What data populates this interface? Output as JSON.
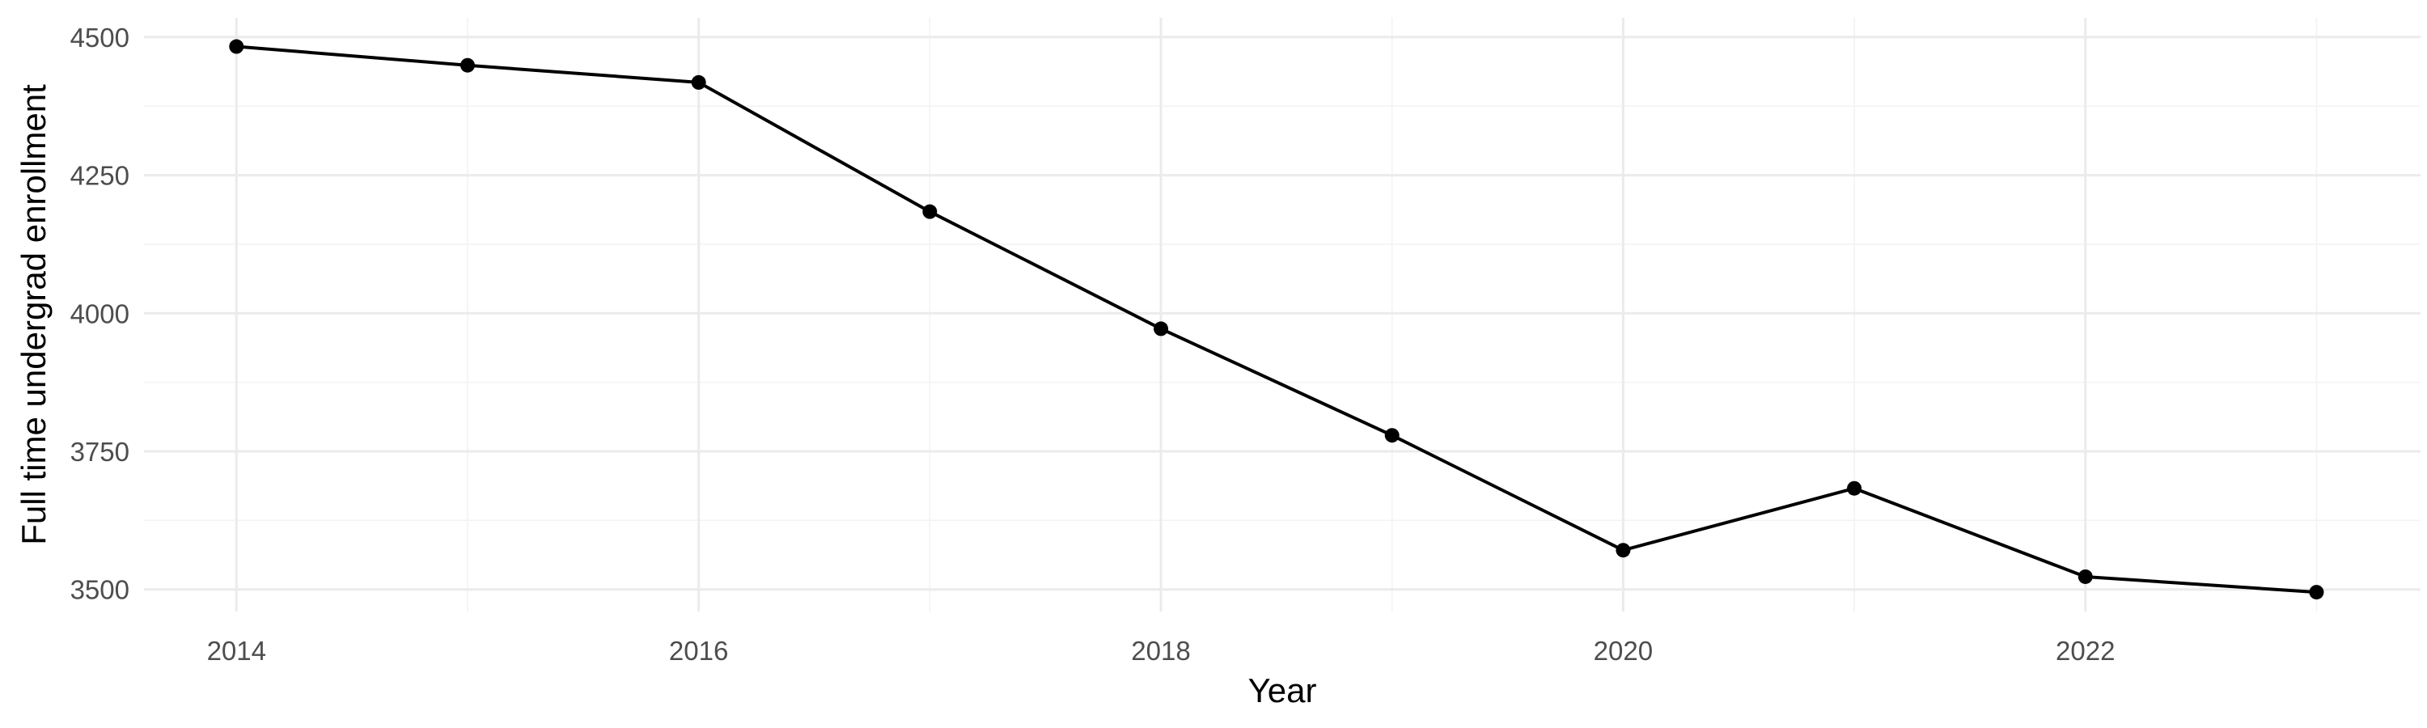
{
  "chart_data": {
    "type": "line",
    "title": "",
    "xlabel": "Year",
    "ylabel": "Full time undergrad enrollment",
    "x": [
      2014,
      2015,
      2016,
      2017,
      2018,
      2019,
      2020,
      2021,
      2022,
      2023
    ],
    "series": [
      {
        "values": [
          4483,
          4449,
          4418,
          4184,
          3972,
          3779,
          3571,
          3683,
          3523,
          3495
        ]
      }
    ],
    "xlim": [
      2013.6,
      2023.45
    ],
    "ylim": [
      3460,
      4535
    ],
    "x_ticks": [
      2014,
      2016,
      2018,
      2020,
      2022
    ],
    "x_tick_labels": [
      "2014",
      "2016",
      "2018",
      "2020",
      "2022"
    ],
    "x_minor_ticks": [
      2015,
      2017,
      2019,
      2021,
      2023
    ],
    "y_ticks": [
      3500,
      3750,
      4000,
      4250,
      4500
    ],
    "y_tick_labels": [
      "3500",
      "3750",
      "4000",
      "4250",
      "4500"
    ],
    "y_minor_ticks": [
      3625,
      3875,
      4125,
      4375
    ],
    "grid": true,
    "legend": "none",
    "colors": {
      "line": "#000000",
      "point": "#000000",
      "grid": "#ebebeb",
      "background": "#ffffff"
    }
  }
}
